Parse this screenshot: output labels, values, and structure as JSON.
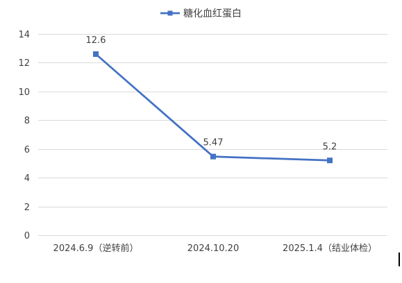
{
  "chart_data": {
    "type": "line",
    "categories": [
      "2024.6.9（逆转前）",
      "2024.10.20",
      "2025.1.4（结业体检）"
    ],
    "series": [
      {
        "name": "糖化血红蛋白",
        "values": [
          12.6,
          5.47,
          5.2
        ],
        "value_labels": [
          "12.6",
          "5.47",
          "5.2"
        ],
        "color": "#4472C4"
      }
    ],
    "ylim": [
      0,
      14
    ],
    "yticks": [
      0,
      2,
      4,
      6,
      8,
      10,
      12,
      14
    ],
    "ytick_labels": [
      "0",
      "2",
      "4",
      "6",
      "8",
      "10",
      "12",
      "14"
    ],
    "grid": true,
    "legend_position": "top",
    "gridline_color": "#D9D9D9"
  }
}
